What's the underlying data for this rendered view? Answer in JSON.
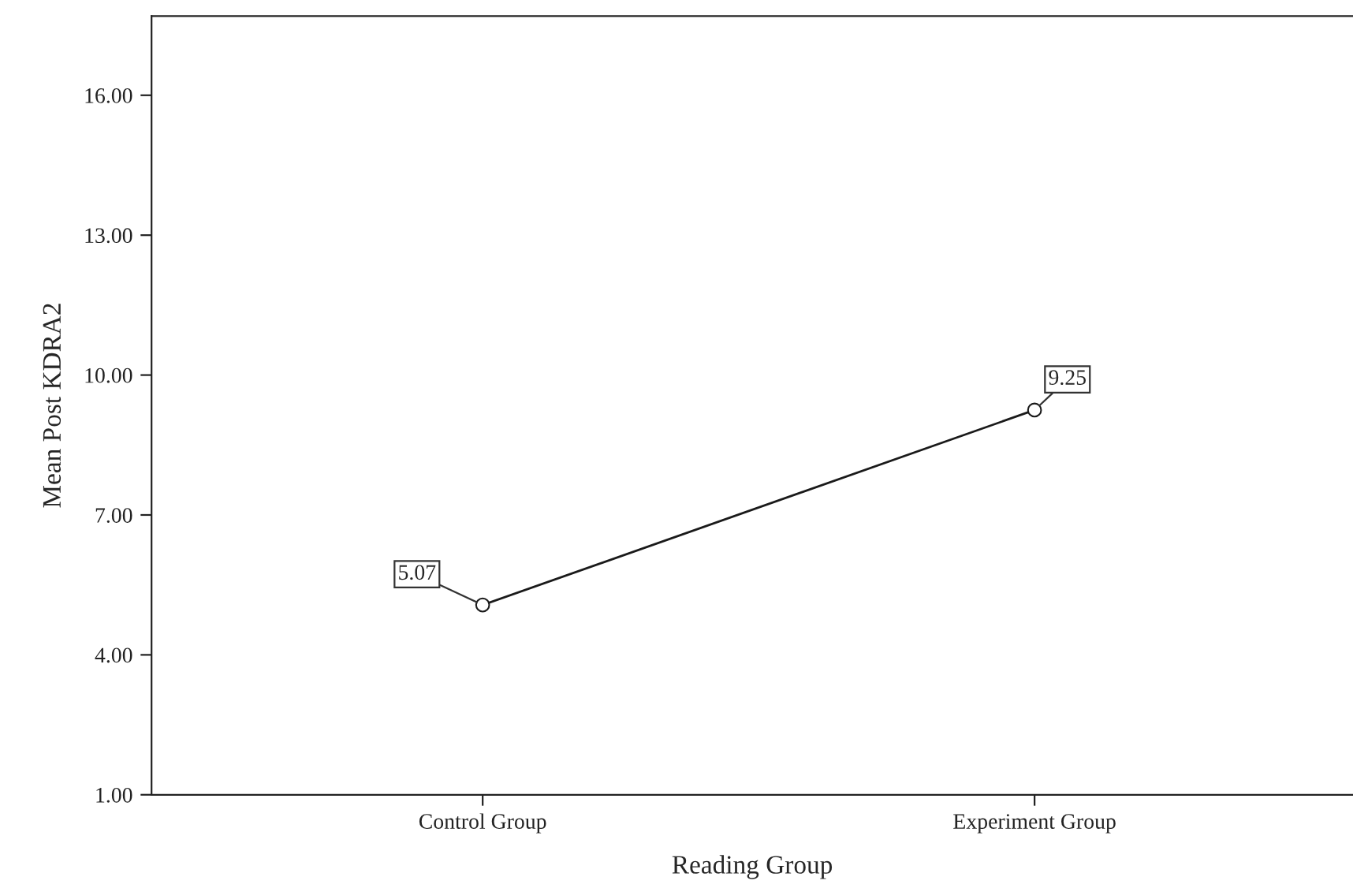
{
  "chart_data": {
    "type": "line",
    "xlabel": "Reading Group",
    "ylabel": "Mean Post KDRA2",
    "categories": [
      "Control Group",
      "Experiment Group"
    ],
    "series": [
      {
        "color": "#1a1a1a",
        "values": [
          5.07,
          9.25
        ]
      }
    ],
    "ylim": [
      1,
      17.7
    ],
    "yticks": [
      {
        "value": 1,
        "label": "1.00"
      },
      {
        "value": 4,
        "label": "4.00"
      },
      {
        "value": 7,
        "label": "7.00"
      },
      {
        "value": 10,
        "label": "10.00"
      },
      {
        "value": 13,
        "label": "13.00"
      },
      {
        "value": 16,
        "label": "16.00"
      }
    ],
    "data_labels": true,
    "marker": "circle",
    "line_style": "solid",
    "grid": false
  }
}
